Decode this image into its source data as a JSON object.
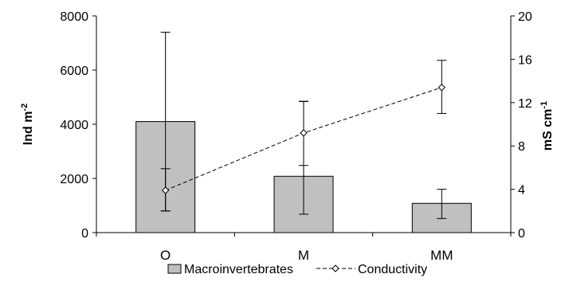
{
  "chart_data": {
    "type": "bar",
    "categories": [
      "O",
      "M",
      "MM"
    ],
    "series": [
      {
        "name": "Macroinvertebrates",
        "kind": "bar",
        "axis": "left",
        "values": [
          4100,
          2080,
          1080
        ],
        "error_low": [
          800,
          680,
          520
        ],
        "error_high": [
          7400,
          4850,
          1600
        ],
        "color": "#c0c0c0"
      },
      {
        "name": "Conductivity",
        "kind": "line",
        "axis": "right",
        "values": [
          3.9,
          9.2,
          13.4
        ],
        "error_low": [
          2.0,
          6.2,
          11.0
        ],
        "error_high": [
          5.9,
          12.1,
          15.9
        ],
        "color": "#000000"
      }
    ],
    "y_left": {
      "label": "Ind m",
      "label_sup": "-2",
      "ylim": [
        0,
        8000
      ],
      "ticks": [
        0,
        2000,
        4000,
        6000,
        8000
      ]
    },
    "y_right": {
      "label": "mS cm",
      "label_sup": "-1",
      "ylim": [
        0,
        20
      ],
      "ticks": [
        0,
        4,
        8,
        12,
        16,
        20
      ]
    },
    "grid": false,
    "legend": "bottom"
  }
}
